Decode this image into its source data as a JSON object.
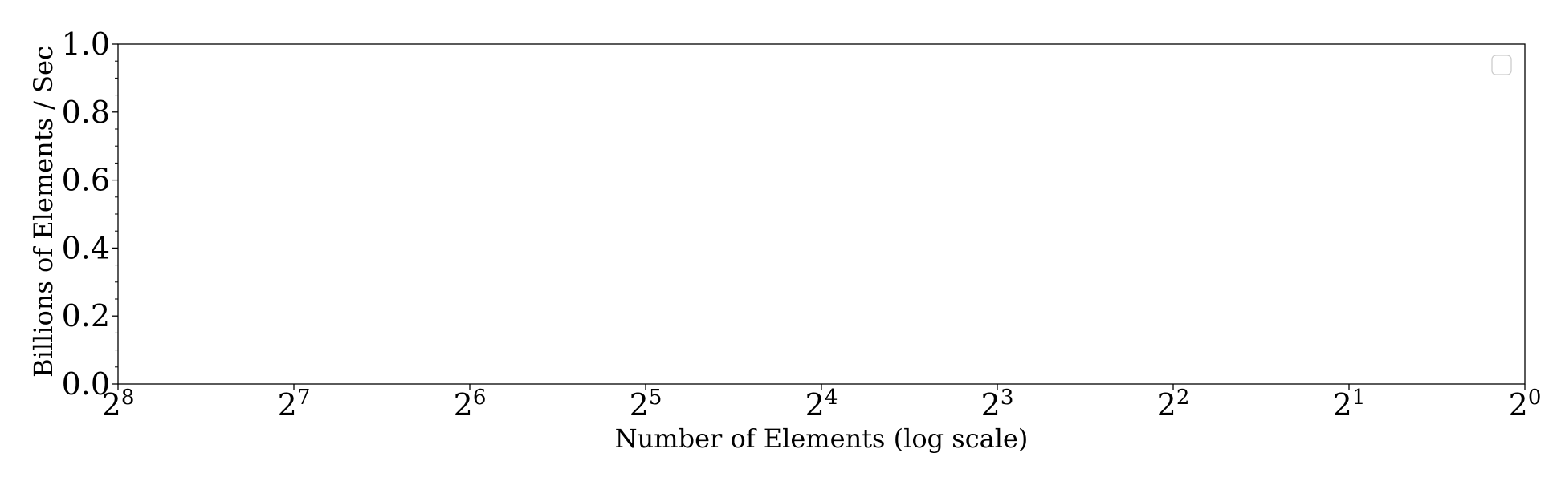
{
  "chart_data": {
    "type": "line",
    "title": "",
    "xlabel": "Number of Elements (log scale)",
    "ylabel": "Billions of Elements / Sec",
    "x_scale": "log2",
    "x_reversed": true,
    "xlim": [
      256,
      1
    ],
    "x_ticks": [
      {
        "value": 256,
        "base": "2",
        "exp": "8"
      },
      {
        "value": 128,
        "base": "2",
        "exp": "7"
      },
      {
        "value": 64,
        "base": "2",
        "exp": "6"
      },
      {
        "value": 32,
        "base": "2",
        "exp": "5"
      },
      {
        "value": 16,
        "base": "2",
        "exp": "4"
      },
      {
        "value": 8,
        "base": "2",
        "exp": "3"
      },
      {
        "value": 4,
        "base": "2",
        "exp": "2"
      },
      {
        "value": 2,
        "base": "2",
        "exp": "1"
      },
      {
        "value": 1,
        "base": "2",
        "exp": "0"
      }
    ],
    "ylim": [
      0.0,
      1.0
    ],
    "y_ticks": [
      "0.0",
      "0.2",
      "0.4",
      "0.6",
      "0.8",
      "1.0"
    ],
    "y_minor_step": 0.05,
    "grid": false,
    "legend": {
      "placement": "top-right",
      "entries": []
    },
    "series": []
  }
}
